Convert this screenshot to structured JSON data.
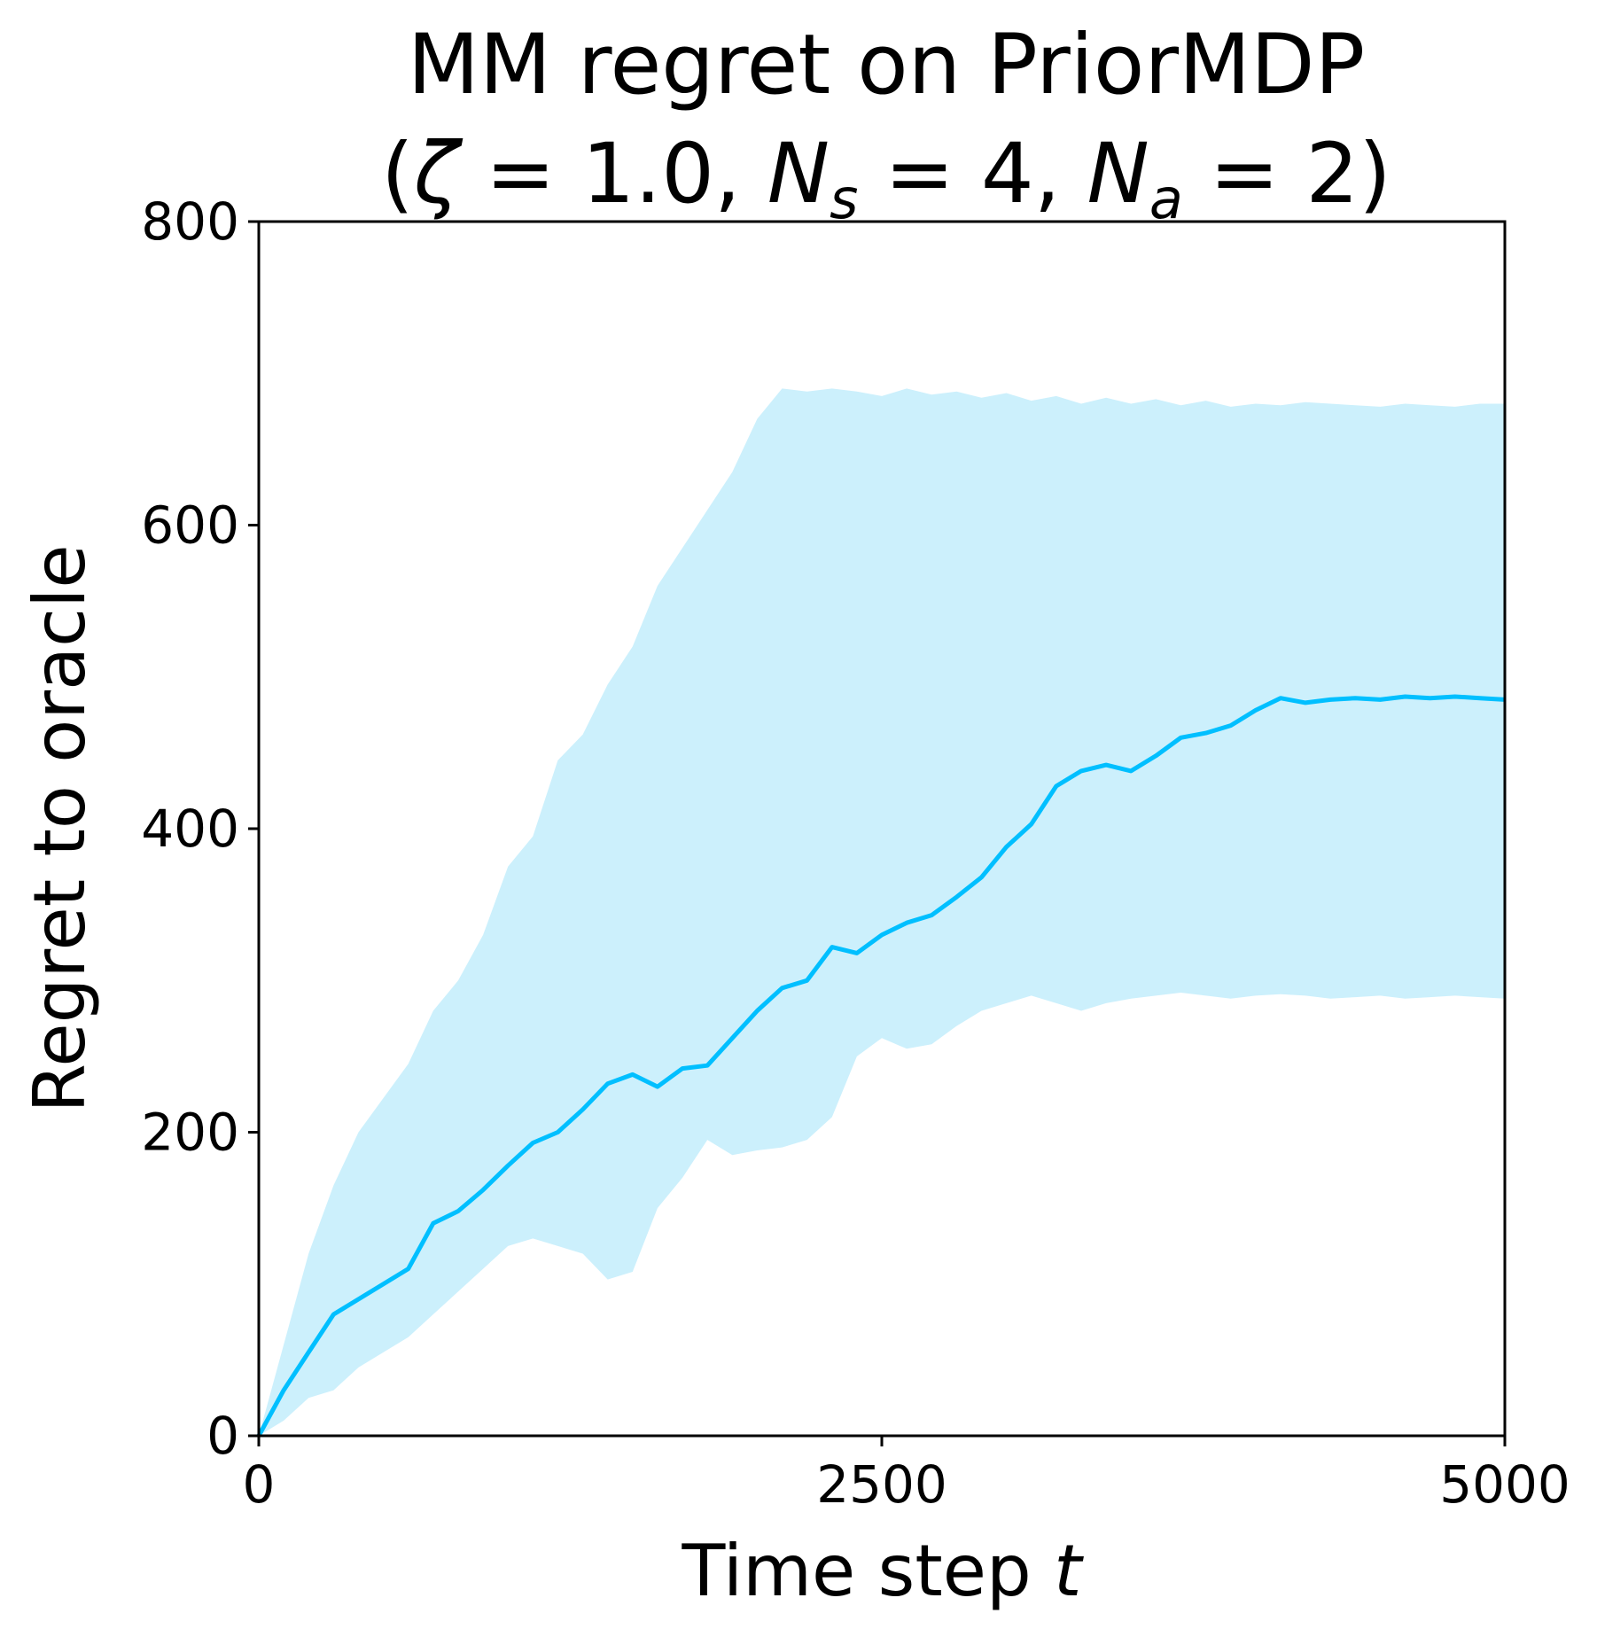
{
  "chart_data": {
    "type": "line",
    "title": {
      "line1": "MM regret on PriorMDP",
      "line2": {
        "open": "(",
        "zeta": "ζ",
        "zeta_eq": " = 1.0, ",
        "ns_main": "N",
        "ns_sub": "s",
        "ns_eq": " = 4, ",
        "na_main": "N",
        "na_sub": "a",
        "na_eq": " = 2)"
      }
    },
    "xlabel": {
      "text": "Time step ",
      "var": "t"
    },
    "ylabel": "Regret to oracle",
    "xlim": [
      0,
      5000
    ],
    "ylim": [
      0,
      800
    ],
    "xticks": [
      0,
      2500,
      5000
    ],
    "xtick_labels": [
      "0",
      "2500",
      "5000"
    ],
    "yticks": [
      0,
      200,
      400,
      600,
      800
    ],
    "ytick_labels": [
      "0",
      "200",
      "400",
      "600",
      "800"
    ],
    "grid": false,
    "legend": "none",
    "colors": {
      "line": "#00bfff",
      "band": "#ccf0fc"
    },
    "series": [
      {
        "x": [
          0,
          100,
          200,
          300,
          400,
          600,
          700,
          800,
          900,
          1000,
          1100,
          1200,
          1300,
          1400,
          1500,
          1600,
          1700,
          1800,
          1900,
          2000,
          2100,
          2200,
          2300,
          2400,
          2500,
          2600,
          2700,
          2800,
          2900,
          3000,
          3100,
          3200,
          3300,
          3400,
          3500,
          3600,
          3700,
          3800,
          3900,
          4000,
          4100,
          4200,
          4300,
          4400,
          4500,
          4600,
          4700,
          4800,
          4900,
          5000
        ],
        "y": [
          0,
          30,
          55,
          80,
          90,
          110,
          140,
          148,
          162,
          178,
          193,
          200,
          215,
          232,
          238,
          230,
          242,
          244,
          262,
          280,
          295,
          300,
          322,
          318,
          330,
          338,
          343,
          355,
          368,
          388,
          403,
          428,
          438,
          442,
          438,
          448,
          460,
          463,
          468,
          478,
          486,
          483,
          485,
          486,
          485,
          487,
          486,
          487,
          486,
          485
        ],
        "lower": [
          0,
          10,
          25,
          30,
          45,
          65,
          80,
          95,
          110,
          125,
          130,
          125,
          120,
          103,
          108,
          150,
          170,
          195,
          185,
          188,
          190,
          195,
          210,
          250,
          262,
          255,
          258,
          270,
          280,
          285,
          290,
          285,
          280,
          285,
          288,
          290,
          292,
          290,
          288,
          290,
          291,
          290,
          288,
          289,
          290,
          288,
          289,
          290,
          289,
          288
        ],
        "upper": [
          0,
          60,
          120,
          165,
          200,
          245,
          280,
          300,
          330,
          375,
          395,
          445,
          462,
          495,
          520,
          560,
          585,
          610,
          635,
          670,
          690,
          688,
          690,
          688,
          685,
          690,
          686,
          688,
          684,
          687,
          682,
          685,
          680,
          684,
          680,
          683,
          679,
          682,
          678,
          680,
          679,
          681,
          680,
          679,
          678,
          680,
          679,
          678,
          680,
          680
        ]
      }
    ]
  }
}
